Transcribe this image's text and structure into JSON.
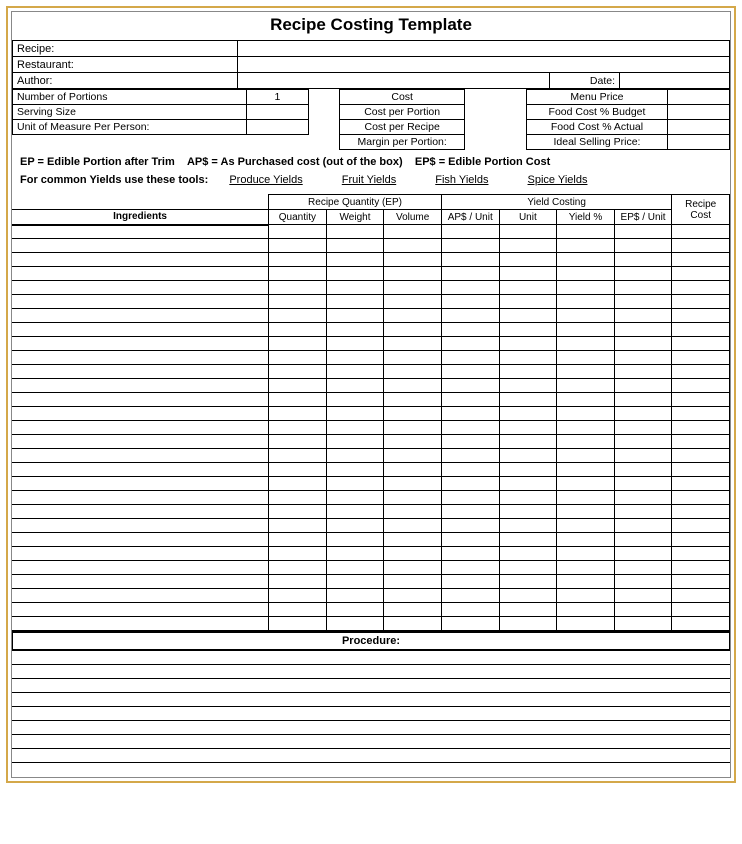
{
  "title": "Recipe Costing Template",
  "header": {
    "recipe_label": "Recipe:",
    "restaurant_label": "Restaurant:",
    "author_label": "Author:",
    "date_label": "Date:"
  },
  "info_left": {
    "portions_label": "Number of Portions",
    "portions_value": "1",
    "serving_label": "Serving Size",
    "unit_label": "Unit of Measure Per Person:"
  },
  "info_mid": {
    "cost_label": "Cost",
    "cost_per_portion": "Cost per Portion",
    "cost_per_recipe": "Cost per Recipe",
    "margin_per_portion": "Margin per Portion:"
  },
  "info_right": {
    "menu_price": "Menu Price",
    "food_cost_budget": "Food Cost % Budget",
    "food_cost_actual": "Food Cost % Actual",
    "ideal_selling": "Ideal Selling Price:"
  },
  "defs": {
    "text": "EP = Edible Portion after Trim    AP$ = As Purchased cost (out of the box)    EP$ = Edible Portion Cost"
  },
  "tools": {
    "prefix": "For common Yields use these tools:",
    "produce": "Produce Yields",
    "fruit": "Fruit Yields",
    "fish": "Fish Yields",
    "spice": "Spice Yields"
  },
  "columns": {
    "ingredients": "Ingredients",
    "recipe_qty_header": "Recipe Quantity (EP)",
    "yield_costing_header": "Yield Costing",
    "recipe_cost_header": "Recipe Cost",
    "quantity": "Quantity",
    "weight": "Weight",
    "volume": "Volume",
    "aps_unit": "AP$ / Unit",
    "unit": "Unit",
    "yield_pct": "Yield %",
    "eps_unit": "EP$ / Unit"
  },
  "procedure_label": "Procedure:",
  "ingredient_row_count": 29,
  "procedure_row_count": 9,
  "style": {
    "frame_color": "#d4a84a",
    "border_color": "#000000",
    "background": "#ffffff",
    "font_family": "Arial",
    "title_fontsize": 17,
    "body_fontsize": 11,
    "table_fontsize": 10
  }
}
